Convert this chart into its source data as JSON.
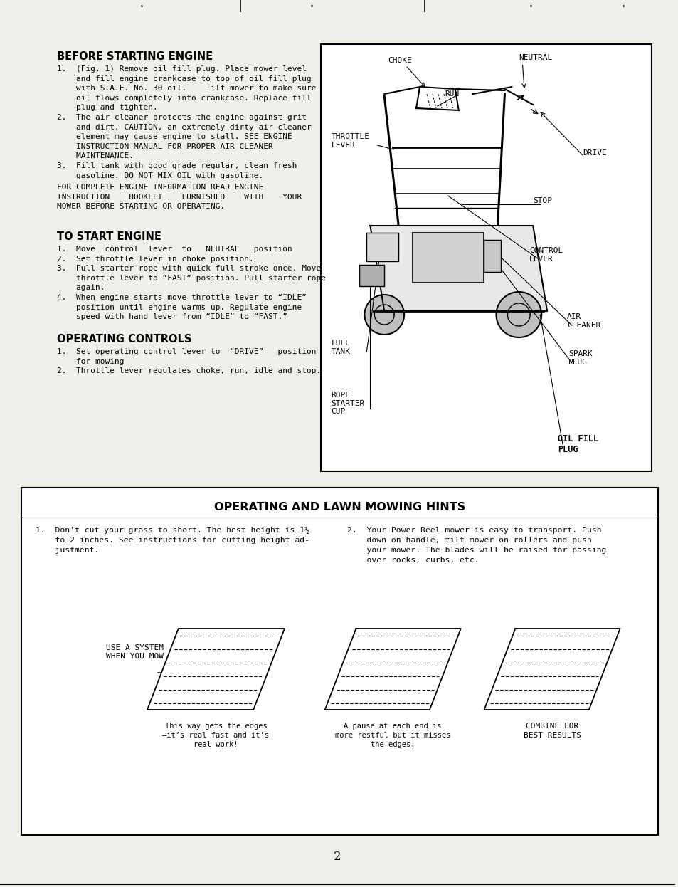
{
  "bg_color": "#f0f0eb",
  "page_number": "2",
  "section1_title": "BEFORE STARTING ENGINE",
  "section2_title": "TO START ENGINE",
  "section3_title": "OPERATING CONTROLS",
  "section4_title": "OPERATING AND LAWN MOWING HINTS",
  "section1_text": "1.  (Fig. 1) Remove oil fill plug. Place mower level\n    and fill engine crankcase to top of oil fill plug\n    with S.A.E. No. 30 oil.    Tilt mower to make sure\n    oil flows completely into crankcase. Replace fill\n    plug and tighten.\n2.  The air cleaner protects the engine against grit\n    and dirt. CAUTION, an extremely dirty air cleaner\n    element may cause engine to stall. SEE ENGINE\n    INSTRUCTION MANUAL FOR PROPER AIR CLEANER\n    MAINTENANCE.\n3.  Fill tank with good grade regular, clean fresh\n    gasoline. DO NOT MIX OIL with gasoline.",
  "section1_note": "FOR COMPLETE ENGINE INFORMATION READ ENGINE\nINSTRUCTION    BOOKLET    FURNISHED    WITH    YOUR\nMOWER BEFORE STARTING OR OPERATING.",
  "section2_text": "1.  Move  control  lever  to   NEUTRAL   position\n2.  Set throttle lever in choke position.\n3.  Pull starter rope with quick full stroke once. Move\n    throttle lever to “FAST” position. Pull starter rope\n    again.\n4.  When engine starts move throttle lever to “IDLE”\n    position until engine warms up. Regulate engine\n    speed with hand lever from “IDLE” to “FAST.”",
  "section3_text": "1.  Set operating control lever to  “DRIVE”   position\n    for mowing\n2.  Throttle lever regulates choke, run, idle and stop.",
  "section4_left": "1.  Don’t cut your grass to short. The best height is 1½\n    to 2 inches. See instructions for cutting height ad-\n    justment.",
  "section4_right": "2.  Your Power Reel mower is easy to transport. Push\n    down on handle, tilt mower on rollers and push\n    your mower. The blades will be raised for passing\n    over rocks, curbs, etc.",
  "mow_caption1a": "USE A SYSTEM\nWHEN YOU MOW",
  "mow_caption1b": "This way gets the edges\n—it’s real fast and it’s\nreal work!",
  "mow_caption2": "A pause at each end is\nmore restful but it misses\nthe edges.",
  "mow_caption3": "COMBINE FOR\nBEST RESULTS"
}
